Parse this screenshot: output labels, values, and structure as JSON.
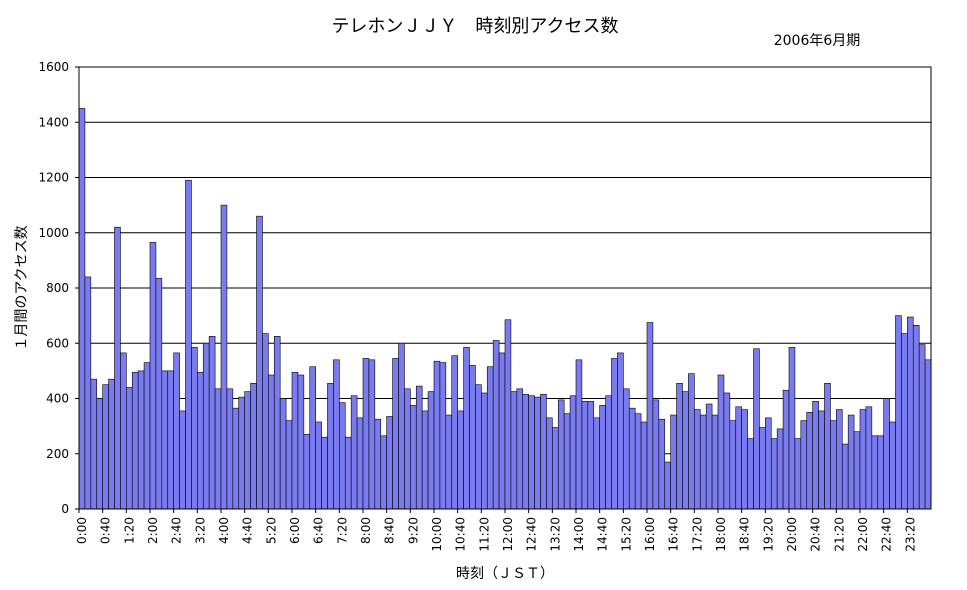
{
  "colors": {
    "bar_fill": "#7b7bf0",
    "bar_stroke": "#000000",
    "grid": "#000000",
    "background": "#ffffff"
  },
  "chart_data": {
    "type": "bar",
    "title": "テレホンＪＪＹ　時刻別アクセス数",
    "subtitle": "2006年6月期",
    "xlabel": "時刻（ＪＳＴ）",
    "ylabel": "１月間のアクセス数",
    "ylim": [
      0,
      1600
    ],
    "yticks": [
      0,
      200,
      400,
      600,
      800,
      1000,
      1200,
      1400,
      1600
    ],
    "grid": true,
    "x_tick_labels": [
      "0:00",
      "0:40",
      "1:20",
      "2:00",
      "2:40",
      "3:20",
      "4:00",
      "4:40",
      "5:20",
      "6:00",
      "6:40",
      "7:20",
      "8:00",
      "8:40",
      "9:20",
      "10:00",
      "10:40",
      "11:20",
      "12:00",
      "12:40",
      "13:20",
      "14:00",
      "14:40",
      "15:20",
      "16:00",
      "16:40",
      "17:20",
      "18:00",
      "18:40",
      "19:20",
      "20:00",
      "20:40",
      "21:20",
      "22:00",
      "22:40",
      "23:20"
    ],
    "tick_every": 4,
    "categories": [
      "0:00",
      "0:10",
      "0:20",
      "0:30",
      "0:40",
      "0:50",
      "1:00",
      "1:10",
      "1:20",
      "1:30",
      "1:40",
      "1:50",
      "2:00",
      "2:10",
      "2:20",
      "2:30",
      "2:40",
      "2:50",
      "3:00",
      "3:10",
      "3:20",
      "3:30",
      "3:40",
      "3:50",
      "4:00",
      "4:10",
      "4:20",
      "4:30",
      "4:40",
      "4:50",
      "5:00",
      "5:10",
      "5:20",
      "5:30",
      "5:40",
      "5:50",
      "6:00",
      "6:10",
      "6:20",
      "6:30",
      "6:40",
      "6:50",
      "7:00",
      "7:10",
      "7:20",
      "7:30",
      "7:40",
      "7:50",
      "8:00",
      "8:10",
      "8:20",
      "8:30",
      "8:40",
      "8:50",
      "9:00",
      "9:10",
      "9:20",
      "9:30",
      "9:40",
      "9:50",
      "10:00",
      "10:10",
      "10:20",
      "10:30",
      "10:40",
      "10:50",
      "11:00",
      "11:10",
      "11:20",
      "11:30",
      "11:40",
      "11:50",
      "12:00",
      "12:10",
      "12:20",
      "12:30",
      "12:40",
      "12:50",
      "13:00",
      "13:10",
      "13:20",
      "13:30",
      "13:40",
      "13:50",
      "14:00",
      "14:10",
      "14:20",
      "14:30",
      "14:40",
      "14:50",
      "15:00",
      "15:10",
      "15:20",
      "15:30",
      "15:40",
      "15:50",
      "16:00",
      "16:10",
      "16:20",
      "16:30",
      "16:40",
      "16:50",
      "17:00",
      "17:10",
      "17:20",
      "17:30",
      "17:40",
      "17:50",
      "18:00",
      "18:10",
      "18:20",
      "18:30",
      "18:40",
      "18:50",
      "19:00",
      "19:10",
      "19:20",
      "19:30",
      "19:40",
      "19:50",
      "20:00",
      "20:10",
      "20:20",
      "20:30",
      "20:40",
      "20:50",
      "21:00",
      "21:10",
      "21:20",
      "21:30",
      "21:40",
      "21:50",
      "22:00",
      "22:10",
      "22:20",
      "22:30",
      "22:40",
      "22:50",
      "23:00",
      "23:10",
      "23:20",
      "23:30",
      "23:40",
      "23:50"
    ],
    "values": [
      1450,
      840,
      470,
      400,
      450,
      470,
      1020,
      565,
      440,
      495,
      500,
      530,
      965,
      835,
      500,
      500,
      565,
      355,
      1190,
      585,
      495,
      600,
      625,
      435,
      1100,
      435,
      365,
      405,
      425,
      455,
      1060,
      635,
      485,
      625,
      400,
      320,
      495,
      485,
      270,
      515,
      315,
      260,
      455,
      540,
      385,
      260,
      410,
      330,
      545,
      540,
      325,
      265,
      335,
      545,
      600,
      435,
      375,
      445,
      355,
      425,
      535,
      530,
      340,
      555,
      355,
      585,
      520,
      450,
      420,
      515,
      610,
      565,
      685,
      425,
      435,
      415,
      410,
      405,
      415,
      330,
      295,
      395,
      345,
      410,
      540,
      390,
      390,
      330,
      375,
      410,
      545,
      565,
      435,
      365,
      345,
      315,
      675,
      395,
      325,
      170,
      340,
      455,
      425,
      490,
      360,
      340,
      380,
      340,
      485,
      420,
      320,
      370,
      360,
      255,
      580,
      295,
      330,
      255,
      290,
      430,
      585,
      255,
      320,
      350,
      390,
      355,
      455,
      320,
      360,
      235,
      340,
      280,
      360,
      370,
      265,
      265,
      400,
      315,
      700,
      635,
      695,
      665,
      595,
      540
    ]
  }
}
